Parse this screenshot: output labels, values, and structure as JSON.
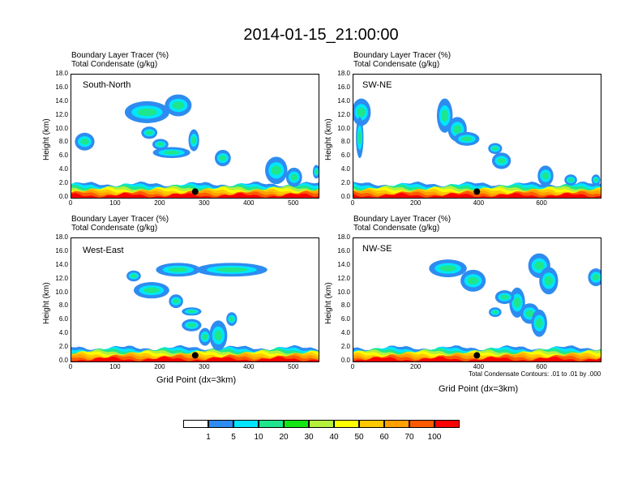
{
  "main_title": "2014-01-15_21:00:00",
  "contour_note": "Total Condensate Contours: .01 to .01 by .000",
  "colors": [
    "#ffffff",
    "#2e8cf0",
    "#00e6ff",
    "#1fe68c",
    "#14e614",
    "#b4f03c",
    "#ffff00",
    "#ffc800",
    "#ffa000",
    "#ff5a00",
    "#ff0000"
  ],
  "chart_data": [
    {
      "type": "heatmap",
      "name": "South-North",
      "title_line1": "Boundary Layer Tracer   (%)",
      "title_line2": "Total Condensate   (g/kg)",
      "label": "South-North",
      "ylabel": "Height (km)",
      "xlabel": "",
      "yticks": [
        "0.0",
        "2.0",
        "4.0",
        "6.0",
        "8.0",
        "10.0",
        "12.0",
        "14.0",
        "16.0",
        "18.0"
      ],
      "xticks": [
        "0",
        "100",
        "200",
        "300",
        "400",
        "500"
      ],
      "xlim": [
        0,
        555
      ],
      "ylim": [
        0,
        18
      ],
      "marker_x": 278
    },
    {
      "type": "heatmap",
      "name": "SW-NE",
      "title_line1": "Boundary Layer Tracer   (%)",
      "title_line2": "Total Condensate   (g/kg)",
      "label": "SW-NE",
      "ylabel": "Height (km)",
      "xlabel": "",
      "yticks": [
        "0.0",
        "2.0",
        "4.0",
        "6.0",
        "8.0",
        "10.0",
        "12.0",
        "14.0",
        "16.0",
        "18.0"
      ],
      "xticks": [
        "0",
        "200",
        "400",
        "600"
      ],
      "xlim": [
        0,
        785
      ],
      "ylim": [
        0,
        18
      ],
      "marker_x": 392
    },
    {
      "type": "heatmap",
      "name": "West-East",
      "title_line1": "Boundary Layer Tracer   (%)",
      "title_line2": "Total Condensate   (g/kg)",
      "label": "West-East",
      "ylabel": "Height (km)",
      "xlabel": "Grid Point (dx=3km)",
      "yticks": [
        "0.0",
        "2.0",
        "4.0",
        "6.0",
        "8.0",
        "10.0",
        "12.0",
        "14.0",
        "16.0",
        "18.0"
      ],
      "xticks": [
        "0",
        "100",
        "200",
        "300",
        "400",
        "500"
      ],
      "xlim": [
        0,
        555
      ],
      "ylim": [
        0,
        18
      ],
      "marker_x": 278
    },
    {
      "type": "heatmap",
      "name": "NW-SE",
      "title_line1": "Boundary Layer Tracer   (%)",
      "title_line2": "Total Condensate   (g/kg)",
      "label": "NW-SE",
      "ylabel": "Height (km)",
      "xlabel": "Grid Point (dx=3km)",
      "yticks": [
        "0.0",
        "2.0",
        "4.0",
        "6.0",
        "8.0",
        "10.0",
        "12.0",
        "14.0",
        "16.0",
        "18.0"
      ],
      "xticks": [
        "0",
        "200",
        "400",
        "600"
      ],
      "xlim": [
        0,
        785
      ],
      "ylim": [
        0,
        18
      ],
      "marker_x": 392
    }
  ],
  "colorbar": {
    "labels": [
      "1",
      "5",
      "10",
      "20",
      "30",
      "40",
      "50",
      "60",
      "70",
      "100"
    ]
  }
}
